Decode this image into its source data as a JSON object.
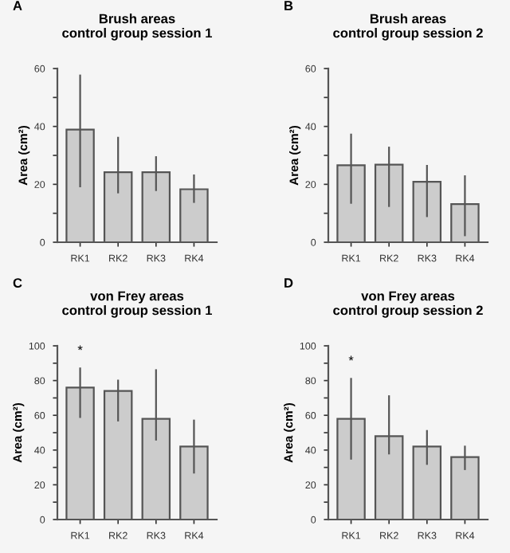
{
  "chart_data": [
    {
      "type": "bar",
      "title": "Brush areas\ncontrol group session 1",
      "ylabel": "Area (cm²)",
      "categories": [
        "RK1",
        "RK2",
        "RK3",
        "RK4"
      ],
      "values": [
        38.9,
        24.2,
        24.2,
        18.3
      ],
      "errors": [
        [
          19.3,
          57.6
        ],
        [
          17.2,
          36.1
        ],
        [
          18.0,
          29.4
        ],
        [
          13.9,
          23.1
        ]
      ],
      "color": "#cccccc",
      "ylim": [
        0,
        60
      ],
      "yticks": [
        0,
        {
          "value": 10,
          "label": null
        },
        20,
        {
          "value": 30,
          "label": null
        },
        40,
        {
          "value": 50,
          "label": null
        },
        60
      ],
      "grid": false,
      "annotations": [
        "A"
      ]
    },
    {
      "type": "bar",
      "title": "Brush areas\ncontrol group session 2",
      "ylabel": "Area (cm²)",
      "categories": [
        "RK1",
        "RK2",
        "RK3",
        "RK4"
      ],
      "values": [
        26.6,
        26.8,
        20.9,
        13.2
      ],
      "errors": [
        [
          13.6,
          37.2
        ],
        [
          12.5,
          32.7
        ],
        [
          9.0,
          26.4
        ],
        [
          2.4,
          22.8
        ]
      ],
      "color": "#cccccc",
      "ylim": [
        0,
        60
      ],
      "yticks": [
        0,
        {
          "value": 10,
          "label": null
        },
        20,
        {
          "value": 30,
          "label": null
        },
        40,
        {
          "value": 50,
          "label": null
        },
        60
      ],
      "grid": false,
      "annotations": [
        "B"
      ]
    },
    {
      "type": "bar",
      "title": "von Frey areas\ncontrol group session 1",
      "ylabel": "Area (cm²)",
      "categories": [
        "RK1",
        "RK2",
        "RK3",
        "RK4"
      ],
      "values": [
        76,
        74,
        58,
        42
      ],
      "errors": [
        [
          59,
          87
        ],
        [
          57,
          80
        ],
        [
          46,
          86
        ],
        [
          27,
          57
        ]
      ],
      "color": "#cccccc",
      "ylim": [
        0,
        100
      ],
      "yticks": [
        0,
        {
          "value": 10,
          "label": null
        },
        20,
        {
          "value": 30,
          "label": null
        },
        40,
        {
          "value": 50,
          "label": null
        },
        60,
        {
          "value": 70,
          "label": null
        },
        80,
        {
          "value": 90,
          "label": null
        },
        100
      ],
      "grid": false,
      "annotations": [
        "C",
        "*"
      ]
    },
    {
      "type": "bar",
      "title": "von Frey areas\ncontrol group session 2",
      "ylabel": "Area (cm²)",
      "categories": [
        "RK1",
        "RK2",
        "RK3",
        "RK4"
      ],
      "values": [
        58,
        48,
        42,
        36
      ],
      "errors": [
        [
          35,
          81
        ],
        [
          38,
          71
        ],
        [
          32,
          51
        ],
        [
          29,
          42
        ]
      ],
      "color": "#cccccc",
      "ylim": [
        0,
        100
      ],
      "yticks": [
        0,
        {
          "value": 10,
          "label": null
        },
        20,
        {
          "value": 30,
          "label": null
        },
        40,
        {
          "value": 50,
          "label": null
        },
        60,
        {
          "value": 70,
          "label": null
        },
        80,
        {
          "value": 90,
          "label": null
        },
        100
      ],
      "grid": false,
      "annotations": [
        "D",
        "*"
      ]
    }
  ]
}
